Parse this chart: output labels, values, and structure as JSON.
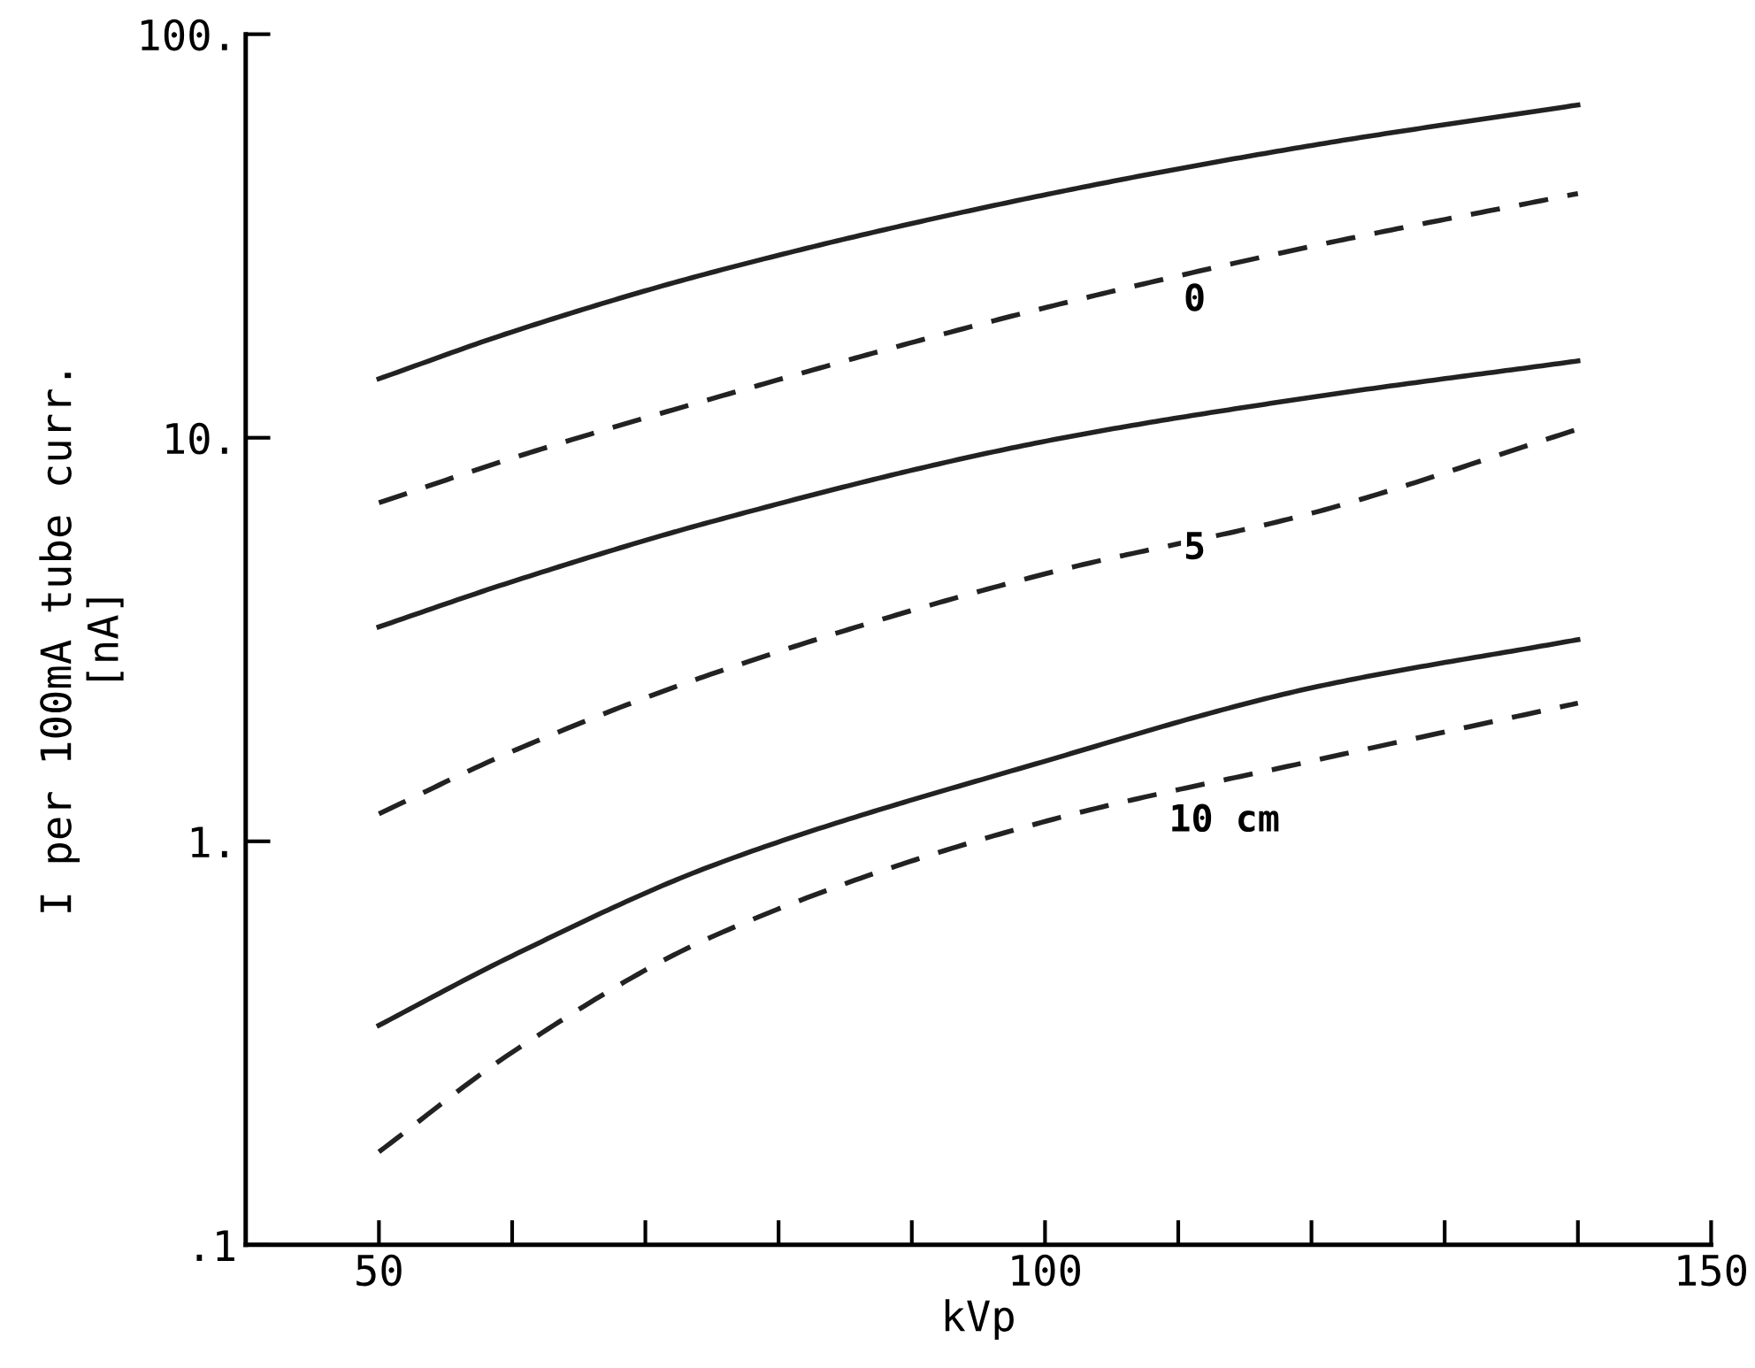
{
  "chart_data": {
    "type": "line",
    "xlabel": "kVp",
    "ylabel": "I per 100mA tube curr.\n[nA]",
    "log": "y",
    "xlim": [
      40,
      150
    ],
    "ylim": [
      0.1,
      100
    ],
    "xticks": [
      50,
      {
        "value": 60,
        "label": null
      },
      {
        "value": 70,
        "label": null
      },
      {
        "value": 80,
        "label": null
      },
      {
        "value": 90,
        "label": null
      },
      100,
      {
        "value": 110,
        "label": null
      },
      {
        "value": 120,
        "label": null
      },
      {
        "value": 130,
        "label": null
      },
      {
        "value": 140,
        "label": null
      },
      150
    ],
    "yticks": [
      {
        "value": 0.1,
        "label": ".1"
      },
      {
        "value": 1,
        "label": "1."
      },
      {
        "value": 10,
        "label": "10."
      },
      {
        "value": 100,
        "label": "100."
      }
    ],
    "grid": false,
    "legend": false,
    "marker": "none",
    "x": [
      50,
      60,
      75,
      100,
      120,
      140
    ],
    "series": [
      {
        "color": "#222222",
        "line_style": "solid",
        "values": [
          14,
          18.3,
          25.7,
          40,
          53,
          66.8
        ]
      },
      {
        "color": "#222222",
        "line_style": "dashed",
        "values": [
          6.9,
          8.9,
          12.5,
          21,
          29.8,
          40.3
        ]
      },
      {
        "color": "#222222",
        "line_style": "solid",
        "values": [
          3.4,
          4.4,
          6.2,
          9.8,
          12.6,
          15.5
        ]
      },
      {
        "color": "#222222",
        "line_style": "dashed",
        "values": [
          1.17,
          1.67,
          2.6,
          4.6,
          6.5,
          10.5
        ]
      },
      {
        "color": "#222222",
        "line_style": "solid",
        "values": [
          0.35,
          0.52,
          0.87,
          1.58,
          2.4,
          3.16
        ]
      },
      {
        "color": "#222222",
        "line_style": "dashed",
        "values": [
          0.17,
          0.3,
          0.58,
          1.12,
          1.58,
          2.2
        ]
      }
    ],
    "annotations": [
      "0",
      "5",
      "10 cm"
    ]
  }
}
